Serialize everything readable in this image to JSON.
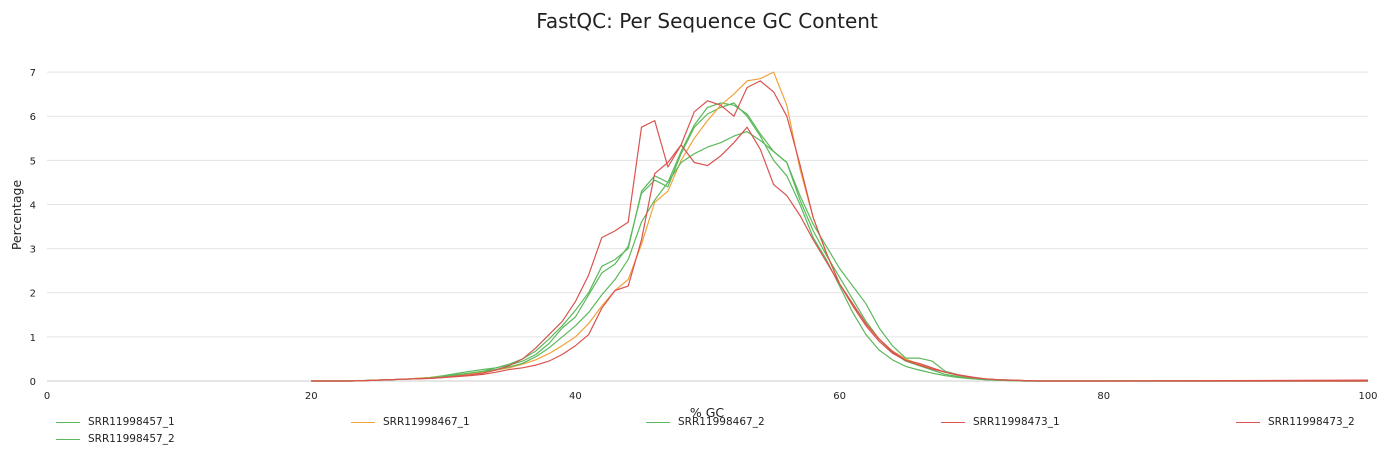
{
  "chart_data": {
    "type": "line",
    "title": "FastQC: Per Sequence GC Content",
    "xlabel": "% GC",
    "ylabel": "Percentage",
    "xlim": [
      0,
      100
    ],
    "ylim": [
      0,
      7.5
    ],
    "xticks": [
      0,
      20,
      40,
      60,
      80,
      100
    ],
    "yticks": [
      0,
      1,
      2,
      3,
      4,
      5,
      6,
      7
    ],
    "grid": true,
    "legend_position": "bottom",
    "x": [
      20,
      21,
      22,
      23,
      24,
      25,
      26,
      27,
      28,
      29,
      30,
      31,
      32,
      33,
      34,
      35,
      36,
      37,
      38,
      39,
      40,
      41,
      42,
      43,
      44,
      45,
      46,
      47,
      48,
      49,
      50,
      51,
      52,
      53,
      54,
      55,
      56,
      57,
      58,
      59,
      60,
      61,
      62,
      63,
      64,
      65,
      66,
      67,
      68,
      69,
      70,
      71,
      72,
      73,
      74,
      75,
      80,
      100
    ],
    "series": [
      {
        "name": "SRR11998457_1",
        "color": "#5cb85c",
        "values": [
          0,
          0,
          0,
          0,
          0.01,
          0.02,
          0.03,
          0.04,
          0.05,
          0.07,
          0.1,
          0.14,
          0.18,
          0.22,
          0.3,
          0.38,
          0.5,
          0.68,
          0.95,
          1.25,
          1.6,
          2.0,
          2.6,
          2.75,
          3.0,
          4.3,
          4.65,
          4.5,
          5.2,
          5.8,
          6.2,
          6.3,
          6.25,
          6.05,
          5.6,
          5.2,
          4.95,
          4.1,
          3.4,
          2.85,
          2.35,
          1.85,
          1.35,
          0.95,
          0.65,
          0.45,
          0.35,
          0.25,
          0.15,
          0.1,
          0.06,
          0.03,
          0.02,
          0.01,
          0,
          0,
          0,
          0
        ]
      },
      {
        "name": "SRR11998457_2",
        "color": "#5cb85c",
        "values": [
          0,
          0,
          0,
          0,
          0.01,
          0.02,
          0.03,
          0.04,
          0.06,
          0.08,
          0.12,
          0.17,
          0.22,
          0.26,
          0.3,
          0.36,
          0.45,
          0.6,
          0.85,
          1.2,
          1.45,
          1.95,
          2.45,
          2.65,
          3.05,
          4.25,
          4.55,
          4.4,
          5.15,
          5.75,
          6.05,
          6.2,
          6.3,
          6.0,
          5.55,
          5.0,
          4.65,
          4.0,
          3.25,
          2.75,
          2.15,
          1.55,
          1.05,
          0.7,
          0.48,
          0.33,
          0.25,
          0.18,
          0.12,
          0.08,
          0.05,
          0.03,
          0.02,
          0.01,
          0,
          0,
          0,
          0
        ]
      },
      {
        "name": "SRR11998467_1",
        "color": "#f0a33b",
        "values": [
          0,
          0,
          0,
          0,
          0.01,
          0.02,
          0.03,
          0.04,
          0.06,
          0.08,
          0.1,
          0.13,
          0.16,
          0.2,
          0.25,
          0.3,
          0.38,
          0.48,
          0.62,
          0.8,
          1.0,
          1.3,
          1.7,
          2.05,
          2.3,
          3.1,
          4.05,
          4.3,
          5.0,
          5.5,
          5.9,
          6.25,
          6.5,
          6.8,
          6.85,
          7.0,
          6.25,
          4.8,
          3.7,
          2.9,
          2.2,
          1.75,
          1.3,
          0.95,
          0.68,
          0.5,
          0.38,
          0.28,
          0.2,
          0.13,
          0.08,
          0.05,
          0.03,
          0.02,
          0.01,
          0,
          0,
          0
        ]
      },
      {
        "name": "SRR11998467_2",
        "color": "#5cb85c",
        "values": [
          0,
          0,
          0,
          0,
          0.01,
          0.02,
          0.03,
          0.04,
          0.05,
          0.07,
          0.1,
          0.14,
          0.18,
          0.22,
          0.26,
          0.32,
          0.4,
          0.55,
          0.75,
          1.0,
          1.25,
          1.55,
          1.95,
          2.3,
          2.75,
          3.6,
          4.1,
          4.5,
          4.95,
          5.15,
          5.3,
          5.4,
          5.55,
          5.65,
          5.45,
          5.2,
          4.95,
          4.2,
          3.55,
          3.05,
          2.55,
          2.15,
          1.75,
          1.2,
          0.8,
          0.52,
          0.52,
          0.45,
          0.22,
          0.14,
          0.08,
          0.04,
          0.02,
          0.01,
          0,
          0,
          0,
          0
        ]
      },
      {
        "name": "SRR11998473_1",
        "color": "#d9534f",
        "values": [
          0,
          0,
          0,
          0,
          0.01,
          0.02,
          0.03,
          0.04,
          0.05,
          0.06,
          0.08,
          0.11,
          0.14,
          0.18,
          0.25,
          0.35,
          0.5,
          0.75,
          1.05,
          1.35,
          1.8,
          2.4,
          3.25,
          3.4,
          3.6,
          5.75,
          5.9,
          4.85,
          5.35,
          4.95,
          4.88,
          5.1,
          5.4,
          5.75,
          5.25,
          4.45,
          4.2,
          3.75,
          3.2,
          2.7,
          2.2,
          1.75,
          1.3,
          0.95,
          0.67,
          0.47,
          0.4,
          0.3,
          0.2,
          0.13,
          0.08,
          0.05,
          0.03,
          0.02,
          0.01,
          0,
          0,
          0.02
        ]
      },
      {
        "name": "SRR11998473_2",
        "color": "#d9534f",
        "values": [
          0,
          0,
          0,
          0,
          0.01,
          0.02,
          0.03,
          0.04,
          0.05,
          0.06,
          0.08,
          0.1,
          0.12,
          0.15,
          0.2,
          0.26,
          0.3,
          0.36,
          0.45,
          0.6,
          0.8,
          1.05,
          1.65,
          2.05,
          2.15,
          3.2,
          4.7,
          4.95,
          5.35,
          6.1,
          6.35,
          6.25,
          6.0,
          6.65,
          6.8,
          6.55,
          6.0,
          4.9,
          3.7,
          2.9,
          2.2,
          1.7,
          1.25,
          0.9,
          0.63,
          0.47,
          0.36,
          0.27,
          0.2,
          0.14,
          0.09,
          0.05,
          0.03,
          0.02,
          0.01,
          0,
          0,
          0
        ]
      }
    ]
  }
}
